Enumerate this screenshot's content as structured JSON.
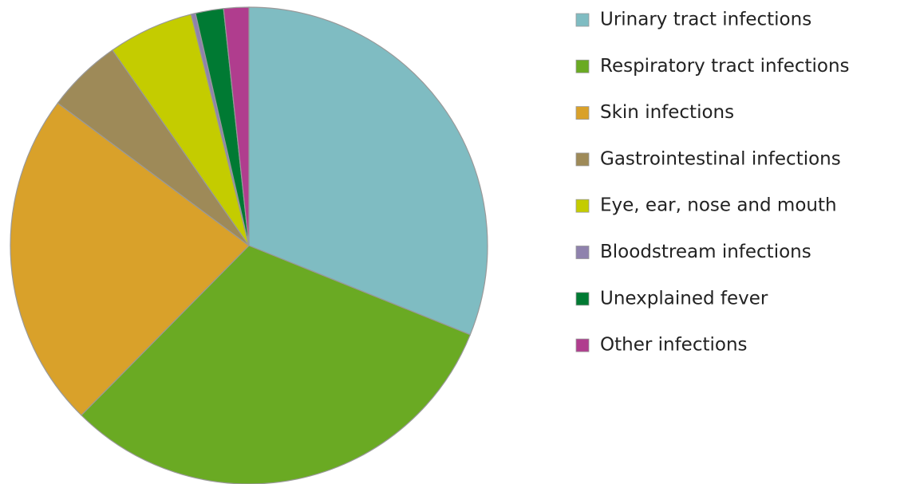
{
  "chart_data": {
    "type": "pie",
    "categories": [
      "Urinary tract infections",
      "Respiratory tract infections",
      "Skin infections",
      "Gastrointestinal infections",
      "Eye, ear, nose and mouth",
      "Bloodstream infections",
      "Unexplained fever",
      "Other infections"
    ],
    "values": [
      31.1,
      31.3,
      22.8,
      5.1,
      5.8,
      0.3,
      1.9,
      1.7
    ],
    "colors": [
      "#7fbcc2",
      "#6aaa23",
      "#d9a12a",
      "#9e8a58",
      "#c4cc00",
      "#8f82ad",
      "#007a33",
      "#b03d8e"
    ],
    "legend": "right"
  }
}
